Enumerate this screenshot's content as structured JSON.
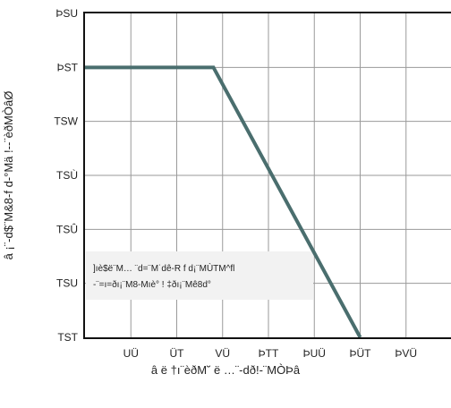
{
  "chart_data": {
    "type": "line",
    "xlabel": "â ë †ı¨èðM˘ ë …¨-dð!-¨MÒÞâ",
    "ylabel": "â ¡¨-d$¨M&8-f d-°Mä !--¨èðMÒâØ",
    "x_tick_labels": [
      "UÜ",
      "ÜT",
      "VÜ",
      "ÞTT",
      "ÞUÜ",
      "ÞÜT",
      "ÞVÜ"
    ],
    "x_tick_values": [
      25,
      50,
      75,
      100,
      125,
      150,
      175
    ],
    "xlim": [
      0,
      200
    ],
    "y_tick_labels": [
      "TST",
      "TSU",
      "TSÛ",
      "TSÙ",
      "TSW",
      "ÞST",
      "ÞSU"
    ],
    "y_tick_values": [
      0.0,
      0.2,
      0.4,
      0.6,
      0.8,
      1.0,
      1.2
    ],
    "ylim": [
      0,
      1.2
    ],
    "grid": true,
    "series": [
      {
        "x": [
          0,
          70,
          150
        ],
        "y": [
          1.0,
          1.0,
          0.0
        ],
        "color": "#4a6e6e"
      }
    ],
    "annotation": {
      "line1": "]ıè$ë¨M… ¨d=¨M˙dê-R f d¡¨MÙTM^fl",
      "line2": "-¨=ı=ðı¡¨M8-Mıè° ! ‡ðı¡¨Mê8d°"
    }
  }
}
